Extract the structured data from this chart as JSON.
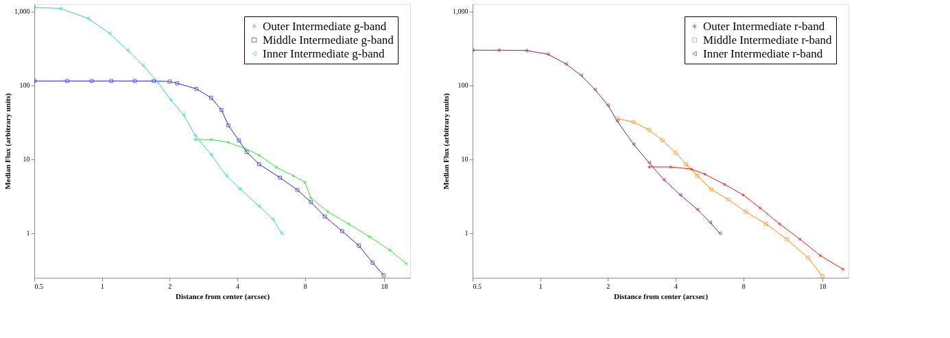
{
  "chart_data": [
    {
      "type": "line",
      "xlabel": "Distance from center (arcsec)",
      "ylabel": "Median Flux (arbitrary units)",
      "log": "xy",
      "xlim": [
        0.5,
        23.5
      ],
      "ylim": [
        0.25,
        1260
      ],
      "xticks": [
        0.5,
        1,
        2,
        4,
        8,
        18
      ],
      "yticks": [
        1,
        10,
        100,
        {
          "value": 1000,
          "label": "1,000"
        }
      ],
      "grid": false,
      "legend": "top right",
      "series": [
        {
          "name": "Outer Intermediate g-band",
          "color": "#33dd33",
          "marker": "cross",
          "x": [
            2.6,
            3.06,
            3.65,
            4.33,
            5.0,
            5.97,
            7.1,
            8.0,
            8.5,
            10.1,
            12.5,
            15.5,
            19.1,
            22.6
          ],
          "values": [
            18.5,
            18.5,
            17,
            14,
            11.4,
            7.8,
            6.0,
            4.9,
            3.0,
            1.96,
            1.34,
            0.9,
            0.59,
            0.387
          ]
        },
        {
          "name": "Middle Intermediate g-band",
          "color": "#2222cc",
          "marker": "square",
          "x": [
            0.5,
            0.7,
            0.9,
            1.1,
            1.4,
            1.7,
            2.0,
            2.16,
            2.63,
            3.06,
            3.4,
            3.65,
            4.07,
            4.4,
            5.0,
            6.2,
            7.4,
            8.5,
            9.8,
            11.7,
            13.9,
            16.0,
            17.9
          ],
          "values": [
            115,
            115,
            115,
            115,
            115,
            115,
            113,
            107,
            90,
            68,
            46.6,
            28.8,
            18,
            12.6,
            8.6,
            5.65,
            3.86,
            2.64,
            1.69,
            1.07,
            0.68,
            0.4,
            0.27
          ]
        },
        {
          "name": "Inner Intermediate g-band",
          "color": "#33cccc",
          "marker": "triangle",
          "x": [
            0.5,
            0.653,
            0.866,
            1.08,
            1.3,
            1.52,
            1.77,
            2.02,
            2.31,
            2.6,
            3.06,
            3.58,
            4.11,
            5.0,
            5.75,
            6.3
          ],
          "values": [
            1135,
            1100,
            809,
            508,
            300,
            188,
            111,
            64,
            40,
            21,
            11.6,
            6.0,
            4.0,
            2.33,
            1.56,
            1.0
          ]
        }
      ]
    },
    {
      "type": "line",
      "xlabel": "Distance from center (arcsec)",
      "ylabel": "Median Flux (arbitrary units)",
      "log": "xy",
      "xlim": [
        0.5,
        23.5
      ],
      "ylim": [
        0.25,
        1260
      ],
      "xticks": [
        0.5,
        1,
        2,
        4,
        8,
        18
      ],
      "yticks": [
        1,
        10,
        100,
        {
          "value": 1000,
          "label": "1,000"
        }
      ],
      "grid": false,
      "legend": "top right",
      "series": [
        {
          "name": "Outer Intermediate r-band",
          "color": "#ee1111",
          "marker": "cross",
          "x": [
            3.05,
            3.8,
            4.7,
            5.4,
            6.6,
            8.0,
            9.5,
            11.6,
            14.3,
            17.6,
            22.2
          ],
          "values": [
            7.9,
            7.9,
            7.4,
            6.3,
            4.6,
            3.3,
            2.2,
            1.34,
            0.83,
            0.5,
            0.327
          ]
        },
        {
          "name": "Middle Intermediate r-band",
          "color": "#ff8800",
          "marker": "square",
          "x": [
            2.2,
            2.6,
            3.05,
            3.5,
            4.0,
            4.45,
            5.0,
            5.75,
            6.85,
            8.2,
            10.1,
            12.5,
            15.5,
            18.0
          ],
          "values": [
            35.6,
            32,
            25,
            18,
            12.3,
            8.6,
            6.0,
            3.95,
            2.87,
            1.96,
            1.34,
            0.83,
            0.47,
            0.264
          ]
        },
        {
          "name": "Inner Intermediate r-band",
          "color": "#8b1a6b",
          "marker": "triangle",
          "x": [
            0.5,
            0.653,
            0.866,
            1.08,
            1.3,
            1.52,
            1.75,
            2.0,
            2.2,
            2.6,
            3.05,
            3.55,
            4.2,
            5.0,
            5.7,
            6.3
          ],
          "values": [
            300,
            300,
            297,
            265,
            196,
            137,
            88,
            54,
            33,
            16,
            9,
            5.3,
            3.3,
            2.1,
            1.4,
            1.0
          ]
        }
      ]
    }
  ]
}
